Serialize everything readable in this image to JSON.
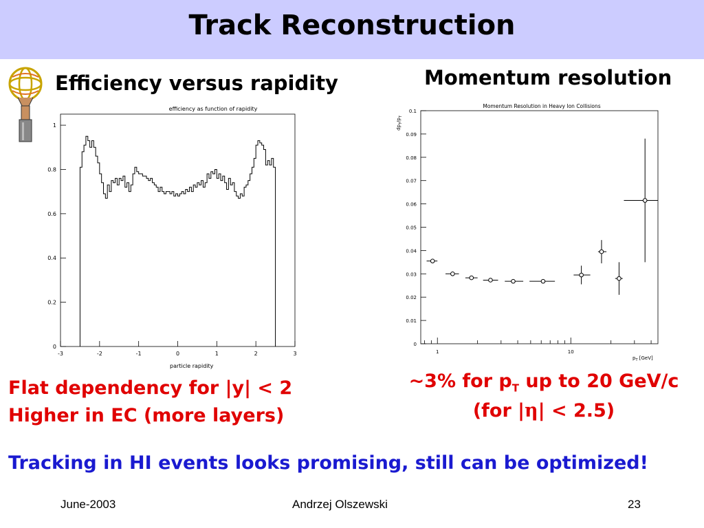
{
  "slide": {
    "title": "Track Reconstruction",
    "left_heading": "Efficiency versus rapidity",
    "right_heading": "Momentum resolution",
    "left_notes": [
      "Flat dependency for |y| < 2",
      "Higher in EC (more layers)"
    ],
    "right_note_1a": "~3% for p",
    "right_note_1sub": "T",
    "right_note_1b": " up to 20 GeV/c",
    "right_note_2a": "(for |",
    "right_note_2eta": "η",
    "right_note_2b": "| < 2.5)",
    "conclusion": "Tracking in HI events looks promising, still can be optimized!",
    "footer": {
      "date": "June-2003",
      "author": "Andrzej Olszewski",
      "page": "23"
    }
  },
  "colors": {
    "title_bar": "#ccccff",
    "red_text": "#e00000",
    "blue_text": "#1a1ad0"
  },
  "chart_data": [
    {
      "type": "line",
      "title": "efficiency as function of rapidity",
      "xlabel": "particle rapidity",
      "ylabel": "",
      "xlim": [
        -3,
        3
      ],
      "ylim": [
        0,
        1.05
      ],
      "x_ticks": [
        "-3",
        "-2",
        "-1",
        "0",
        "1",
        "2",
        "3"
      ],
      "y_ticks": [
        "0",
        "0.2",
        "0.4",
        "0.6",
        "0.8",
        "1"
      ],
      "bin_edges": [
        -2.5,
        -2.45,
        -2.4,
        -2.35,
        -2.3,
        -2.25,
        -2.2,
        -2.15,
        -2.1,
        -2.05,
        -2.0,
        -1.95,
        -1.9,
        -1.85,
        -1.8,
        -1.75,
        -1.7,
        -1.65,
        -1.6,
        -1.55,
        -1.5,
        -1.45,
        -1.4,
        -1.35,
        -1.3,
        -1.25,
        -1.2,
        -1.15,
        -1.1,
        -1.05,
        -1.0,
        -0.95,
        -0.9,
        -0.85,
        -0.8,
        -0.75,
        -0.7,
        -0.65,
        -0.6,
        -0.55,
        -0.5,
        -0.45,
        -0.4,
        -0.35,
        -0.3,
        -0.25,
        -0.2,
        -0.15,
        -0.1,
        -0.05,
        0.0,
        0.05,
        0.1,
        0.15,
        0.2,
        0.25,
        0.3,
        0.35,
        0.4,
        0.45,
        0.5,
        0.55,
        0.6,
        0.65,
        0.7,
        0.75,
        0.8,
        0.85,
        0.9,
        0.95,
        1.0,
        1.05,
        1.1,
        1.15,
        1.2,
        1.25,
        1.3,
        1.35,
        1.4,
        1.45,
        1.5,
        1.55,
        1.6,
        1.65,
        1.7,
        1.75,
        1.8,
        1.85,
        1.9,
        1.95,
        2.0,
        2.05,
        2.1,
        2.15,
        2.2,
        2.25,
        2.3,
        2.35,
        2.4,
        2.45,
        2.5
      ],
      "values": [
        0.81,
        0.88,
        0.91,
        0.95,
        0.93,
        0.9,
        0.93,
        0.9,
        0.86,
        0.83,
        0.78,
        0.74,
        0.69,
        0.67,
        0.73,
        0.7,
        0.75,
        0.74,
        0.76,
        0.73,
        0.76,
        0.75,
        0.77,
        0.72,
        0.74,
        0.7,
        0.73,
        0.78,
        0.81,
        0.79,
        0.78,
        0.78,
        0.77,
        0.77,
        0.76,
        0.75,
        0.76,
        0.74,
        0.73,
        0.72,
        0.7,
        0.72,
        0.7,
        0.69,
        0.7,
        0.7,
        0.69,
        0.7,
        0.68,
        0.69,
        0.68,
        0.69,
        0.7,
        0.69,
        0.71,
        0.7,
        0.72,
        0.7,
        0.73,
        0.72,
        0.74,
        0.73,
        0.75,
        0.72,
        0.74,
        0.78,
        0.76,
        0.79,
        0.78,
        0.8,
        0.76,
        0.78,
        0.75,
        0.77,
        0.74,
        0.71,
        0.76,
        0.73,
        0.74,
        0.7,
        0.68,
        0.67,
        0.69,
        0.68,
        0.72,
        0.73,
        0.75,
        0.78,
        0.81,
        0.85,
        0.91,
        0.93,
        0.92,
        0.91,
        0.89,
        0.82,
        0.84,
        0.82,
        0.85,
        0.81
      ]
    },
    {
      "type": "scatter",
      "title": "Momentum Resolution in Heavy Ion Collisions",
      "ylabel_a": "dp",
      "ylabel_b": "T",
      "ylabel_c": "/p",
      "ylabel_d": "T",
      "xlabel_a": "p",
      "xlabel_b": "T",
      "xlabel_c": " [GeV]",
      "x_scale": "log",
      "xlim": [
        0.75,
        45
      ],
      "ylim": [
        0,
        0.1
      ],
      "x_ticks": [
        "1",
        "10"
      ],
      "y_ticks": [
        "0",
        "0.01",
        "0.02",
        "0.03",
        "0.04",
        "0.05",
        "0.06",
        "0.07",
        "0.08",
        "0.09",
        "0.1"
      ],
      "points": [
        {
          "x": 0.92,
          "y": 0.0355,
          "xlo": 0.83,
          "xhi": 1.0,
          "ylo": 0.0355,
          "yhi": 0.0355
        },
        {
          "x": 1.3,
          "y": 0.03,
          "xlo": 1.15,
          "xhi": 1.45,
          "ylo": 0.03,
          "yhi": 0.03
        },
        {
          "x": 1.8,
          "y": 0.0283,
          "xlo": 1.62,
          "xhi": 2.0,
          "ylo": 0.0283,
          "yhi": 0.0283
        },
        {
          "x": 2.5,
          "y": 0.0273,
          "xlo": 2.2,
          "xhi": 2.85,
          "ylo": 0.0273,
          "yhi": 0.0273
        },
        {
          "x": 3.7,
          "y": 0.0268,
          "xlo": 3.2,
          "xhi": 4.4,
          "ylo": 0.0268,
          "yhi": 0.0268
        },
        {
          "x": 6.2,
          "y": 0.0268,
          "xlo": 4.9,
          "xhi": 7.6,
          "ylo": 0.0268,
          "yhi": 0.0268
        },
        {
          "x": 12,
          "y": 0.0295,
          "xlo": 10.5,
          "xhi": 14,
          "ylo": 0.0255,
          "yhi": 0.0335
        },
        {
          "x": 17,
          "y": 0.0395,
          "xlo": 16,
          "xhi": 18.5,
          "ylo": 0.0345,
          "yhi": 0.0445
        },
        {
          "x": 23,
          "y": 0.028,
          "xlo": 21.5,
          "xhi": 24.5,
          "ylo": 0.021,
          "yhi": 0.035
        },
        {
          "x": 36,
          "y": 0.0615,
          "xlo": 25,
          "xhi": 45,
          "ylo": 0.035,
          "yhi": 0.088
        }
      ]
    }
  ]
}
